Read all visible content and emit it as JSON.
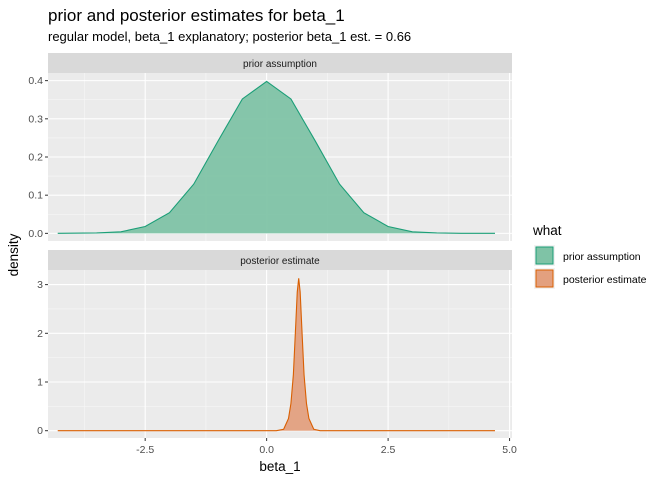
{
  "title": "prior and posterior estimates for beta_1",
  "subtitle": "regular model, beta_1 explanatory; posterior beta_1 est. = 0.66",
  "chart_data": {
    "type": "area",
    "title": "prior and posterior estimates for beta_1",
    "subtitle": "regular model, beta_1 explanatory; posterior beta_1 est. = 0.66",
    "xlabel": "beta_1",
    "ylabel": "density",
    "xlim": [
      -4.5,
      5.05
    ],
    "x_ticks": [
      -2.5,
      0.0,
      2.5,
      5.0
    ],
    "x_tick_labels": [
      "-2.5",
      "0.0",
      "2.5",
      "5.0"
    ],
    "grid": true,
    "legend": {
      "title": "what",
      "position": "right",
      "entries": [
        "prior assumption",
        "posterior estimate"
      ]
    },
    "panels": [
      {
        "strip": "prior assumption",
        "ylim": [
          -0.02,
          0.42
        ],
        "y_ticks": [
          0.0,
          0.1,
          0.2,
          0.3,
          0.4
        ],
        "y_tick_labels": [
          "0.0",
          "0.1",
          "0.2",
          "0.3",
          "0.4"
        ],
        "series": {
          "name": "prior assumption",
          "fill": "#7fc3a6",
          "stroke": "#1b9e77",
          "x": [
            -4.3,
            -3.5,
            -3.0,
            -2.5,
            -2.0,
            -1.5,
            -1.0,
            -0.5,
            0.0,
            0.5,
            1.0,
            1.5,
            2.0,
            2.5,
            3.0,
            3.5,
            4.0,
            4.7
          ],
          "y": [
            0.0,
            0.001,
            0.004,
            0.018,
            0.054,
            0.129,
            0.242,
            0.352,
            0.398,
            0.352,
            0.242,
            0.129,
            0.054,
            0.018,
            0.004,
            0.001,
            0.0,
            0.0
          ]
        }
      },
      {
        "strip": "posterior estimate",
        "ylim": [
          -0.15,
          3.3
        ],
        "y_ticks": [
          0,
          1,
          2,
          3
        ],
        "y_tick_labels": [
          "0",
          "1",
          "2",
          "3"
        ],
        "series": {
          "name": "posterior estimate",
          "fill": "#e3a07f",
          "stroke": "#d95f02",
          "x": [
            -4.3,
            0.2,
            0.35,
            0.45,
            0.5,
            0.55,
            0.6,
            0.63,
            0.66,
            0.69,
            0.72,
            0.77,
            0.82,
            0.87,
            0.97,
            1.1,
            4.7
          ],
          "y": [
            0.0,
            0.0,
            0.03,
            0.25,
            0.56,
            1.15,
            2.2,
            2.85,
            3.13,
            2.85,
            2.2,
            1.15,
            0.56,
            0.25,
            0.03,
            0.0,
            0.0
          ]
        }
      }
    ]
  }
}
